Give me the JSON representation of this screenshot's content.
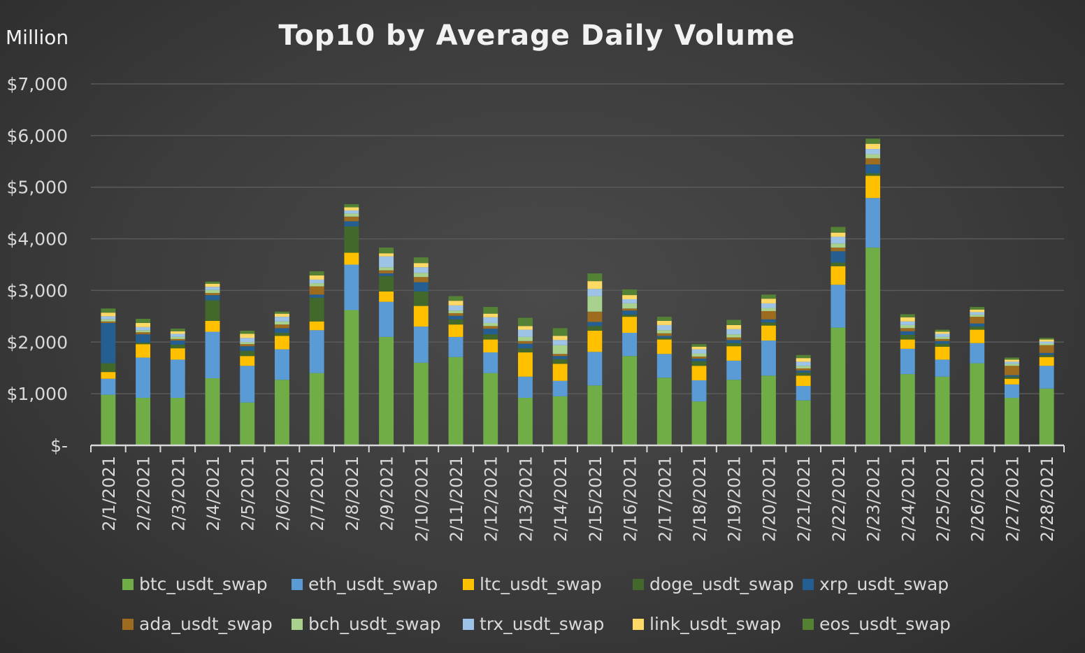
{
  "chart_data": {
    "type": "bar",
    "stacked": true,
    "title": "Top10 by Average Daily Volume",
    "unit_label": "Million",
    "ylim": [
      0,
      7000
    ],
    "y_ticks": [
      {
        "value": 0,
        "label": "$-"
      },
      {
        "value": 1000,
        "label": "$1,000"
      },
      {
        "value": 2000,
        "label": "$2,000"
      },
      {
        "value": 3000,
        "label": "$3,000"
      },
      {
        "value": 4000,
        "label": "$4,000"
      },
      {
        "value": 5000,
        "label": "$5,000"
      },
      {
        "value": 6000,
        "label": "$6,000"
      },
      {
        "value": 7000,
        "label": "$7,000"
      }
    ],
    "grid": true,
    "legend_position": "bottom",
    "categories": [
      "2/1/2021",
      "2/2/2021",
      "2/3/2021",
      "2/4/2021",
      "2/5/2021",
      "2/6/2021",
      "2/7/2021",
      "2/8/2021",
      "2/9/2021",
      "2/10/2021",
      "2/11/2021",
      "2/12/2021",
      "2/13/2021",
      "2/14/2021",
      "2/15/2021",
      "2/16/2021",
      "2/17/2021",
      "2/18/2021",
      "2/19/2021",
      "2/20/2021",
      "2/21/2021",
      "2/22/2021",
      "2/23/2021",
      "2/24/2021",
      "2/25/2021",
      "2/26/2021",
      "2/27/2021",
      "2/28/2021"
    ],
    "series": [
      {
        "name": "btc_usdt_swap",
        "color": "#70ad47",
        "values": [
          980,
          920,
          920,
          1300,
          830,
          1270,
          1400,
          2620,
          2100,
          1600,
          1710,
          1400,
          920,
          950,
          1160,
          1730,
          1310,
          850,
          1270,
          1350,
          870,
          2280,
          3830,
          1380,
          1330,
          1590,
          920,
          1100
        ]
      },
      {
        "name": "eth_usdt_swap",
        "color": "#5b9bd5",
        "values": [
          310,
          780,
          740,
          900,
          710,
          590,
          830,
          880,
          680,
          700,
          390,
          400,
          410,
          300,
          650,
          450,
          460,
          410,
          370,
          680,
          280,
          830,
          960,
          490,
          330,
          390,
          260,
          440
        ]
      },
      {
        "name": "ltc_usdt_swap",
        "color": "#ffc000",
        "values": [
          130,
          260,
          220,
          210,
          190,
          260,
          170,
          230,
          200,
          400,
          240,
          250,
          470,
          330,
          410,
          310,
          280,
          280,
          280,
          290,
          200,
          360,
          430,
          180,
          250,
          260,
          110,
          170
        ]
      },
      {
        "name": "doge_usdt_swap",
        "color": "#43682b",
        "values": [
          170,
          30,
          70,
          400,
          100,
          60,
          460,
          510,
          300,
          280,
          100,
          100,
          80,
          90,
          90,
          40,
          30,
          90,
          60,
          60,
          60,
          70,
          50,
          90,
          60,
          60,
          40,
          40
        ]
      },
      {
        "name": "xrp_usdt_swap",
        "color": "#255e91",
        "values": [
          780,
          160,
          80,
          100,
          90,
          90,
          60,
          100,
          50,
          180,
          70,
          110,
          90,
          60,
          80,
          80,
          40,
          50,
          60,
          60,
          40,
          220,
          170,
          70,
          50,
          60,
          30,
          40
        ]
      },
      {
        "name": "ada_usdt_swap",
        "color": "#9e6c1f",
        "values": [
          30,
          40,
          30,
          40,
          40,
          70,
          160,
          90,
          60,
          100,
          50,
          50,
          50,
          40,
          200,
          40,
          50,
          40,
          50,
          160,
          40,
          70,
          120,
          60,
          40,
          130,
          180,
          150
        ]
      },
      {
        "name": "bch_usdt_swap",
        "color": "#a9d18e",
        "values": [
          40,
          40,
          40,
          60,
          40,
          60,
          60,
          60,
          60,
          80,
          50,
          60,
          80,
          170,
          300,
          100,
          60,
          60,
          60,
          60,
          50,
          80,
          80,
          60,
          40,
          40,
          40,
          30
        ]
      },
      {
        "name": "trx_usdt_swap",
        "color": "#9dc3e6",
        "values": [
          60,
          60,
          60,
          60,
          80,
          90,
          70,
          60,
          210,
          110,
          100,
          110,
          140,
          100,
          140,
          80,
          100,
          80,
          100,
          90,
          80,
          130,
          100,
          70,
          60,
          50,
          40,
          40
        ]
      },
      {
        "name": "link_usdt_swap",
        "color": "#ffd966",
        "values": [
          70,
          80,
          50,
          60,
          80,
          60,
          80,
          60,
          60,
          80,
          90,
          70,
          70,
          80,
          150,
          80,
          80,
          50,
          80,
          90,
          70,
          80,
          100,
          80,
          40,
          50,
          40,
          40
        ]
      },
      {
        "name": "eos_usdt_swap",
        "color": "#548235",
        "values": [
          80,
          80,
          50,
          40,
          60,
          40,
          80,
          60,
          110,
          110,
          90,
          130,
          160,
          150,
          150,
          110,
          80,
          50,
          100,
          80,
          60,
          110,
          100,
          60,
          40,
          50,
          40,
          30
        ]
      }
    ]
  }
}
